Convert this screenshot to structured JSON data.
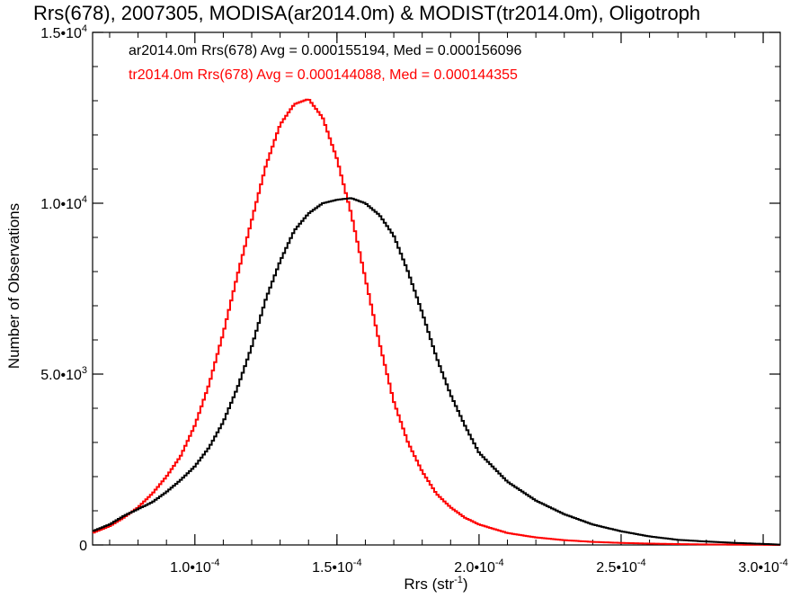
{
  "chart_data": {
    "type": "line",
    "title": "Rrs(678), 2007305, MODISA(ar2014.0m) & MODIST(tr2014.0m), Oligotroph",
    "xlabel": "Rrs (str",
    "xlabel_sup": "-1",
    "xlabel_end": ")",
    "ylabel": "Number of Observations",
    "xlim": [
      6.4e-05,
      0.000306
    ],
    "ylim": [
      0,
      15000
    ],
    "grid": false,
    "legend_position": "top-left",
    "x_ticks": [
      {
        "value": 0.0001,
        "mant": "1.0•10",
        "exp": "-4"
      },
      {
        "value": 0.00015,
        "mant": "1.5•10",
        "exp": "-4"
      },
      {
        "value": 0.0002,
        "mant": "2.0•10",
        "exp": "-4"
      },
      {
        "value": 0.00025,
        "mant": "2.5•10",
        "exp": "-4"
      },
      {
        "value": 0.0003,
        "mant": "3.0•10",
        "exp": "-4"
      }
    ],
    "y_ticks": [
      {
        "value": 0,
        "mant": "0",
        "exp": ""
      },
      {
        "value": 5000,
        "mant": "5.0•10",
        "exp": "3"
      },
      {
        "value": 10000,
        "mant": "1.0•10",
        "exp": "4"
      },
      {
        "value": 15000,
        "mant": "1.5•10",
        "exp": "4"
      }
    ],
    "series": [
      {
        "name": "ar2014.0m Rrs(678) Avg = 0.000155194, Med = 0.000156096",
        "color": "#000000",
        "x": [
          6.4e-05,
          7e-05,
          7.5e-05,
          8e-05,
          8.5e-05,
          9e-05,
          9.5e-05,
          0.0001,
          0.000105,
          0.00011,
          0.000115,
          0.00012,
          0.000125,
          0.00013,
          0.000135,
          0.00014,
          0.000145,
          0.00015,
          0.000155,
          0.00016,
          0.000165,
          0.00017,
          0.000175,
          0.00018,
          0.000185,
          0.00019,
          0.000195,
          0.0002,
          0.00021,
          0.00022,
          0.00023,
          0.00024,
          0.00025,
          0.00026,
          0.00027,
          0.00028,
          0.00029,
          0.0003,
          0.000306
        ],
        "values": [
          400,
          600,
          850,
          1050,
          1250,
          1550,
          1900,
          2300,
          2850,
          3600,
          4600,
          5800,
          7200,
          8300,
          9200,
          9700,
          10000,
          10100,
          10150,
          10000,
          9650,
          9050,
          8000,
          6800,
          5500,
          4400,
          3500,
          2700,
          1850,
          1300,
          900,
          600,
          400,
          250,
          150,
          100,
          60,
          30,
          10
        ]
      },
      {
        "name": "tr2014.0m Rrs(678) Avg = 0.000144088, Med = 0.000144355",
        "color": "#ff0000",
        "x": [
          6.4e-05,
          7e-05,
          7.5e-05,
          8e-05,
          8.5e-05,
          9e-05,
          9.5e-05,
          0.0001,
          0.000105,
          0.00011,
          0.000115,
          0.00012,
          0.000125,
          0.00013,
          0.000135,
          0.00014,
          0.000145,
          0.00015,
          0.000155,
          0.00016,
          0.000165,
          0.00017,
          0.000175,
          0.00018,
          0.000185,
          0.00019,
          0.000195,
          0.0002,
          0.00021,
          0.00022,
          0.00023,
          0.00024,
          0.00025,
          0.00026,
          0.00027,
          0.00028,
          0.00029,
          0.0003,
          0.000306
        ],
        "values": [
          350,
          550,
          800,
          1100,
          1500,
          2000,
          2600,
          3500,
          4700,
          6200,
          7900,
          9500,
          11100,
          12300,
          12900,
          13050,
          12500,
          11300,
          9700,
          7800,
          5900,
          4200,
          3000,
          2150,
          1500,
          1100,
          800,
          600,
          350,
          220,
          140,
          90,
          60,
          40,
          25,
          15,
          10,
          5,
          0
        ]
      }
    ]
  }
}
